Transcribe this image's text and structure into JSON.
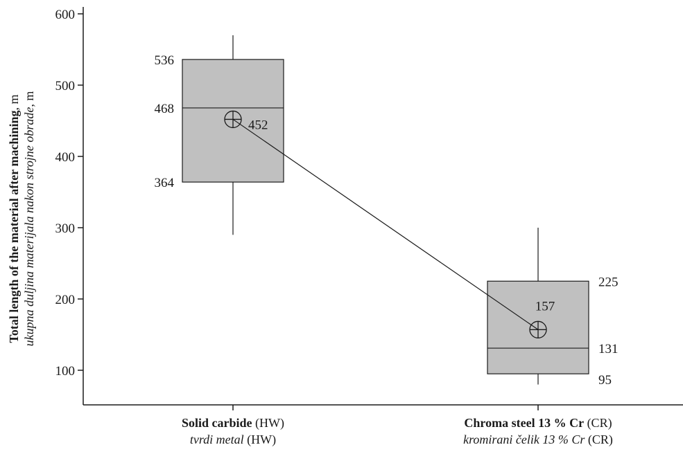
{
  "chart_data": {
    "type": "boxplot",
    "ylim": [
      50,
      600
    ],
    "yticks": [
      100,
      200,
      300,
      400,
      500,
      600
    ],
    "ylabel": {
      "primary_bold": "Total length of the material after machining",
      "primary_unit": ", m",
      "secondary_italic": "ukupna duljina materijala nakon strojne obrade",
      "secondary_unit": ", m"
    },
    "categories": [
      {
        "name_bold": "Solid carbide",
        "name_code": " (HW)",
        "sub_italic": "tvrdi metal",
        "sub_code": " (HW)",
        "whisker_low": 290,
        "q1": 364,
        "median": 468,
        "q3": 536,
        "whisker_high": 570,
        "mean": 452,
        "labels": {
          "q1": "364",
          "median": "468",
          "q3": "536",
          "mean": "452"
        }
      },
      {
        "name_bold": "Chroma steel 13 % Cr",
        "name_code": " (CR)",
        "sub_italic": "kromirani čelik 13 % Cr",
        "sub_code": " (CR)",
        "whisker_low": 80,
        "q1": 95,
        "median": 131,
        "q3": 225,
        "whisker_high": 300,
        "mean": 157,
        "labels": {
          "q1": "95",
          "median": "131",
          "q3": "225",
          "mean": "157"
        }
      }
    ],
    "box_fill": "#c0c0c0",
    "line_color": "#1a1a1a",
    "mean_connector": true,
    "grid": false
  }
}
